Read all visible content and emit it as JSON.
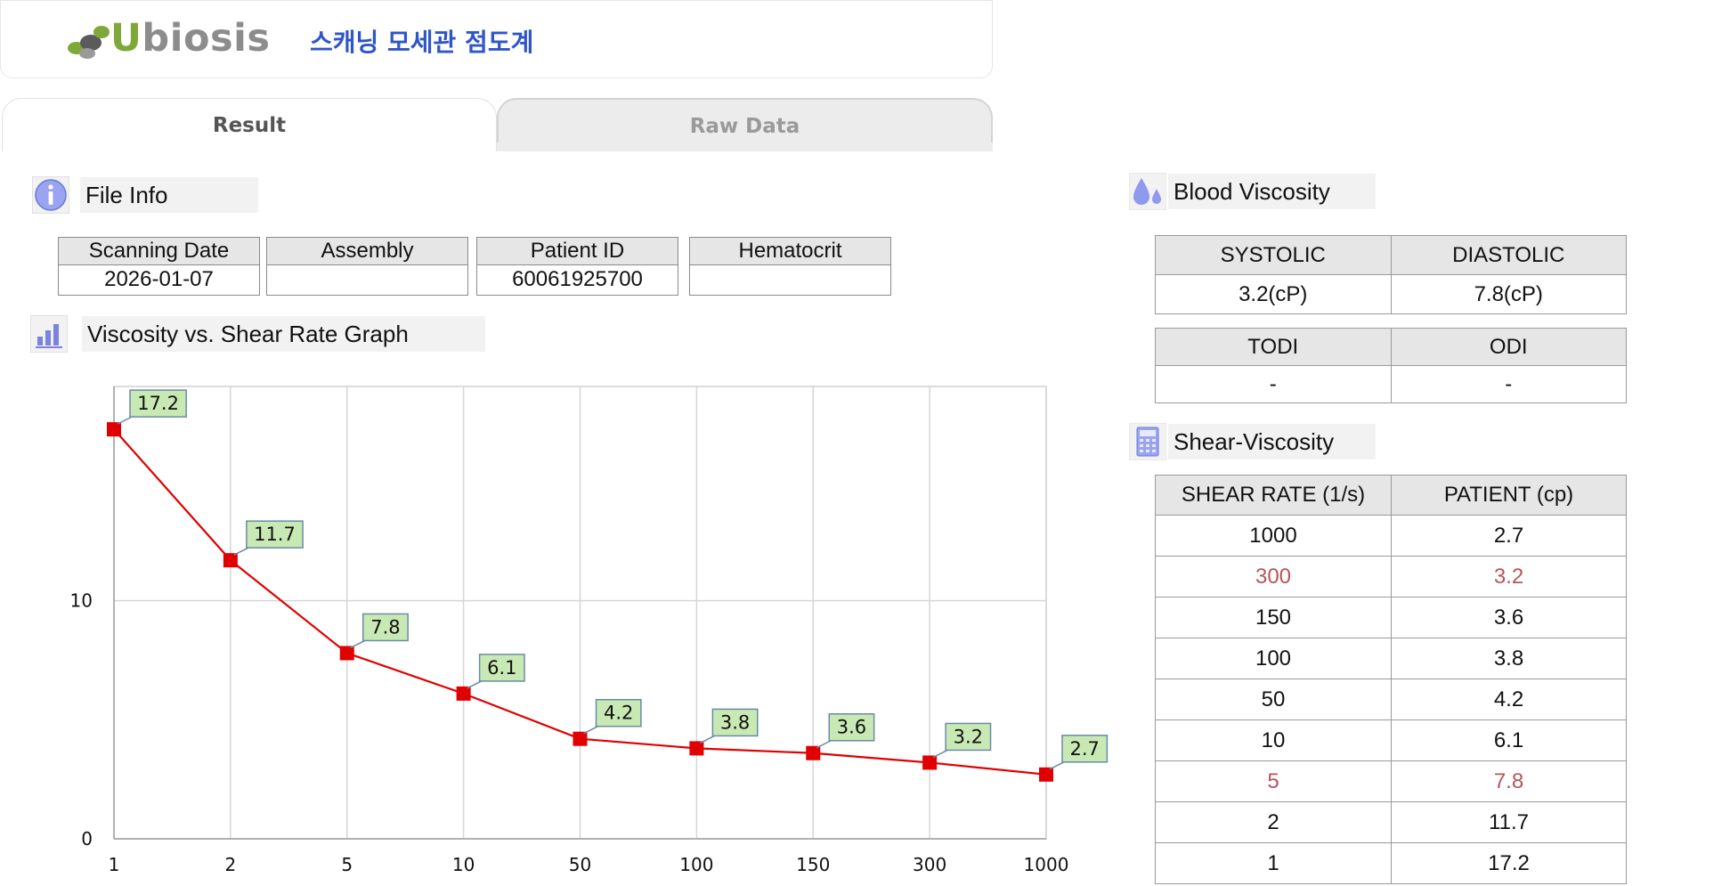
{
  "header": {
    "logo_text": "Ubiosis",
    "app_title": "스캐닝 모세관 점도계"
  },
  "tabs": [
    {
      "label": "Result",
      "active": true
    },
    {
      "label": "Raw Data",
      "active": false
    }
  ],
  "file_info": {
    "section_label": "File Info",
    "columns": [
      {
        "header": "Scanning Date",
        "value": "2026-01-07"
      },
      {
        "header": "Assembly",
        "value": ""
      },
      {
        "header": "Patient ID",
        "value": "60061925700"
      },
      {
        "header": "Hematocrit",
        "value": ""
      }
    ]
  },
  "graph_section": {
    "section_label": "Viscosity vs. Shear Rate Graph"
  },
  "blood_viscosity": {
    "section_label": "Blood Viscosity",
    "row1": {
      "headers": [
        "SYSTOLIC",
        "DIASTOLIC"
      ],
      "values": [
        "3.2(cP)",
        "7.8(cP)"
      ]
    },
    "row2": {
      "headers": [
        "TODI",
        "ODI"
      ],
      "values": [
        "-",
        "-"
      ]
    }
  },
  "shear_viscosity": {
    "section_label": "Shear-Viscosity",
    "headers": [
      "SHEAR RATE (1/s)",
      "PATIENT (cp)"
    ],
    "rows": [
      {
        "rate": "1000",
        "patient": "2.7",
        "highlight": false
      },
      {
        "rate": "300",
        "patient": "3.2",
        "highlight": true
      },
      {
        "rate": "150",
        "patient": "3.6",
        "highlight": false
      },
      {
        "rate": "100",
        "patient": "3.8",
        "highlight": false
      },
      {
        "rate": "50",
        "patient": "4.2",
        "highlight": false
      },
      {
        "rate": "10",
        "patient": "6.1",
        "highlight": false
      },
      {
        "rate": "5",
        "patient": "7.8",
        "highlight": true
      },
      {
        "rate": "2",
        "patient": "11.7",
        "highlight": false
      },
      {
        "rate": "1",
        "patient": "17.2",
        "highlight": false
      }
    ],
    "highlight_color": "#b5555c"
  },
  "chart_data": {
    "type": "line",
    "categories": [
      "1",
      "2",
      "5",
      "10",
      "50",
      "100",
      "150",
      "300",
      "1000"
    ],
    "series": [
      {
        "values": [
          17.2,
          11.7,
          7.8,
          6.1,
          4.2,
          3.8,
          3.6,
          3.2,
          2.7
        ],
        "color": "#e00000"
      }
    ],
    "y_ticks": [
      0,
      10
    ],
    "ylim": [
      0,
      19
    ],
    "grid": true,
    "data_labels": true
  }
}
